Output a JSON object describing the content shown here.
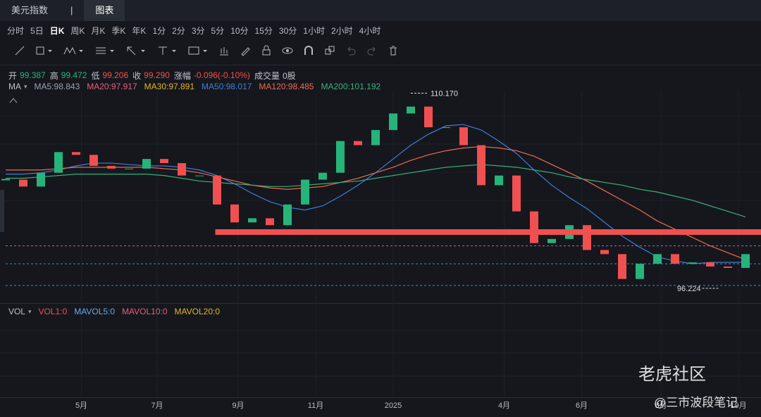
{
  "tabs": [
    "美元指数",
    "|",
    "图表"
  ],
  "active_tab": 2,
  "periods": [
    "分时",
    "5日",
    "日K",
    "周K",
    "月K",
    "季K",
    "年K",
    "1分",
    "2分",
    "3分",
    "5分",
    "10分",
    "15分",
    "30分",
    "1小时",
    "2小时",
    "4小时"
  ],
  "active_period": 2,
  "quote": [
    {
      "label": "开",
      "value": "99.387",
      "color": "#26b47a"
    },
    {
      "label": "高",
      "value": "99.472",
      "color": "#26b47a"
    },
    {
      "label": "低",
      "value": "99.206",
      "color": "#f0504f"
    },
    {
      "label": "收",
      "value": "99.290",
      "color": "#f0504f"
    },
    {
      "label": "涨幅",
      "value": "-0.096(-0.10%)",
      "color": "#f0504f"
    },
    {
      "label": "成交量",
      "value": "0股",
      "color": "#c0c4cc"
    }
  ],
  "ma_legend": {
    "title": "MA",
    "items": [
      {
        "text": "MA5:98.843",
        "color": "#9aa3ad"
      },
      {
        "text": "MA20:97.917",
        "color": "#e0607e"
      },
      {
        "text": "MA30:97.891",
        "color": "#e6b422"
      },
      {
        "text": "MA50:98.017",
        "color": "#3d7fd9"
      },
      {
        "text": "MA120:98.485",
        "color": "#f06a4f"
      },
      {
        "text": "MA200:101.192",
        "color": "#3bb07a"
      }
    ]
  },
  "vol_legend": {
    "title": "VOL",
    "items": [
      {
        "text": "VOL1:0",
        "color": "#f0504f"
      },
      {
        "text": "MAVOL5:0",
        "color": "#6aa8e8"
      },
      {
        "text": "MAVOL10:0",
        "color": "#e0607e"
      },
      {
        "text": "MAVOL20:0",
        "color": "#e6b422"
      }
    ]
  },
  "watermark": {
    "brand": "老虎社区",
    "author": "@三市波段笔记"
  },
  "chart_data": {
    "type": "candlestick",
    "values": [
      103.9,
      103.4,
      104.4,
      105.9,
      105.7,
      104.9,
      104.7,
      104.7,
      105.4,
      105.1,
      104.2,
      104.2,
      102.1,
      100.8,
      101.1,
      100.6,
      102.1,
      103.9,
      104.4,
      106.7,
      106.4,
      107.5,
      108.7,
      109.2,
      107.7,
      107.7,
      106.4,
      103.5,
      104.2,
      101.6,
      99.3,
      99.6,
      100.6,
      98.8,
      98.5,
      96.7,
      97.8,
      98.5,
      97.8,
      97.9,
      97.6,
      97.5,
      98.5
    ],
    "up_color": "#26b47a",
    "down_color": "#f0504f",
    "lines": [
      {
        "color": "#3d7fd9",
        "values": [
          104.3,
          104.3,
          104.4,
          104.6,
          104.9,
          105.1,
          105.1,
          105.0,
          104.9,
          104.9,
          104.8,
          104.6,
          104.2,
          103.6,
          102.9,
          102.3,
          101.9,
          101.7,
          102.0,
          102.7,
          103.5,
          104.4,
          105.4,
          106.4,
          107.2,
          107.8,
          107.9,
          107.5,
          106.7,
          105.8,
          104.6,
          103.5,
          102.6,
          101.8,
          100.8,
          99.8,
          99.0,
          98.3,
          98.0,
          97.8,
          97.9,
          97.9,
          97.9
        ]
      },
      {
        "color": "#f06a4f",
        "values": [
          104.6,
          104.6,
          104.6,
          104.7,
          104.8,
          104.8,
          104.8,
          104.8,
          104.8,
          104.7,
          104.6,
          104.4,
          104.1,
          103.8,
          103.5,
          103.3,
          103.2,
          103.3,
          103.4,
          103.7,
          104.0,
          104.4,
          104.8,
          105.3,
          105.7,
          106.0,
          106.2,
          106.3,
          106.2,
          106.0,
          105.6,
          105.0,
          104.4,
          103.8,
          103.1,
          102.4,
          101.7,
          100.9,
          100.3,
          99.7,
          99.1,
          98.6,
          98.1
        ]
      },
      {
        "color": "#3bb07a",
        "values": [
          104.0,
          104.0,
          104.1,
          104.2,
          104.3,
          104.3,
          104.3,
          104.3,
          104.3,
          104.2,
          104.0,
          103.8,
          103.7,
          103.6,
          103.5,
          103.4,
          103.4,
          103.5,
          103.6,
          103.7,
          103.8,
          104.0,
          104.2,
          104.4,
          104.6,
          104.8,
          104.9,
          105.0,
          104.9,
          104.8,
          104.6,
          104.4,
          104.1,
          103.9,
          103.7,
          103.5,
          103.2,
          103.0,
          102.7,
          102.4,
          102.0,
          101.6,
          101.2
        ]
      }
    ],
    "ylim": [
      95,
      110.3
    ],
    "xticks": [
      {
        "value": 4.3,
        "label": "5月"
      },
      {
        "value": 8.6,
        "label": "7月"
      },
      {
        "value": 13.2,
        "label": "9月"
      },
      {
        "value": 17.6,
        "label": "11月"
      },
      {
        "value": 22.0,
        "label": "2025"
      },
      {
        "value": 28.3,
        "label": "4月"
      },
      {
        "value": 32.7,
        "label": "6月"
      },
      {
        "value": 37.2,
        "label": "8月"
      },
      {
        "value": 41.6,
        "label": "10月"
      }
    ],
    "high": {
      "index": 23,
      "value": 110.17,
      "label": "110.170"
    },
    "low": {
      "index": 40.5,
      "value": 96.224
    },
    "levels": [
      {
        "value": 99.1,
        "color": "#c06a8a"
      },
      {
        "value": 97.8,
        "color": "#3a8fc0"
      }
    ],
    "support": {
      "value": 100.1,
      "from": 11.9,
      "color": "#f0504f"
    }
  }
}
